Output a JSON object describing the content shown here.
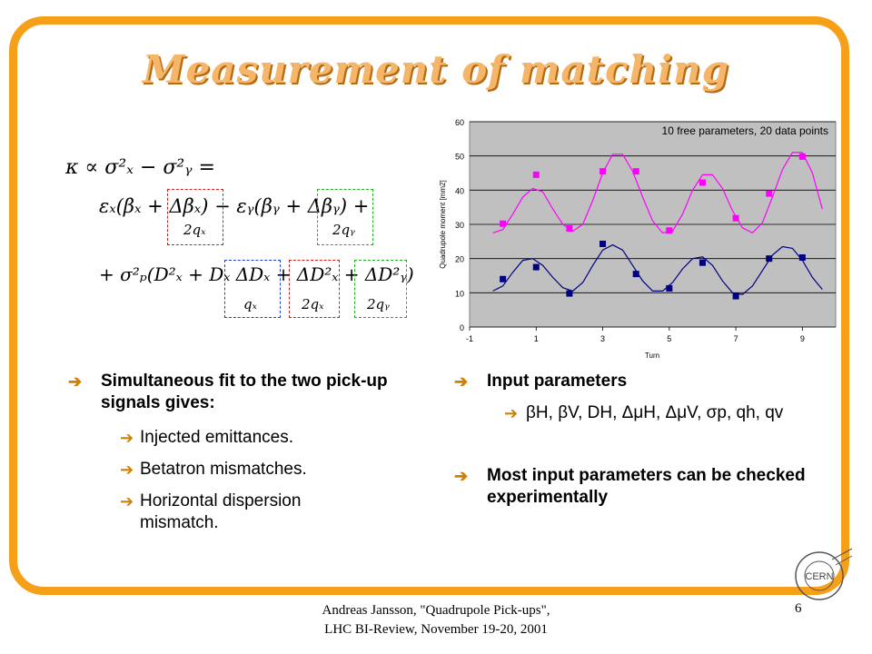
{
  "slide": {
    "title": "Measurement of matching",
    "footer_line1": "Andreas Jansson, \"Quadrupole Pick-ups\",",
    "footer_line2": "LHC BI-Review, November 19-20, 2001",
    "page_number": "6",
    "logo_text": "CERN"
  },
  "equation": {
    "line1": "κ ∝ σ²ₓ − σ²ᵧ =",
    "line2": "εₓ(βₓ + Δβₓ) − εᵧ(βᵧ + Δβᵧ) +",
    "line3": "+ σ²ₚ(D²ₓ + Dₓ ΔDₓ + ΔD²ₓ + ΔD²ᵧ)",
    "brace1": "2qₓ",
    "brace2": "2qᵧ",
    "brace3": "qₓ",
    "brace4": "2qₓ",
    "brace5": "2qᵧ"
  },
  "left_bullets": {
    "main": "Simultaneous fit to the two pick-up signals gives:",
    "sub": [
      "Injected emittances.",
      "Betatron mismatches.",
      "Horizontal dispersion mismatch."
    ]
  },
  "right_bullets": {
    "input_label": "Input parameters",
    "input_list": "βH, βV, DH, ΔμH, ΔμV, σp, qh, qv",
    "checked": "Most input parameters can be checked experimentally"
  },
  "colors": {
    "frame": "#f6a01a",
    "arrow": "#d08000",
    "plot_bg": "#c0c0c0",
    "magenta": "#ff00ff",
    "blue": "#000080"
  },
  "chart_data": {
    "type": "scatter",
    "annotation": "10 free parameters, 20 data points",
    "xlabel": "Turn",
    "ylabel": "Quadrupole moment [mm2]",
    "xlim": [
      -1,
      10
    ],
    "ylim": [
      0,
      60
    ],
    "xticks": [
      -1,
      1,
      3,
      5,
      7,
      9
    ],
    "yticks": [
      0,
      10,
      20,
      30,
      40,
      50,
      60
    ],
    "grid": "horizontal",
    "series": [
      {
        "color": "#ff00ff",
        "points": [
          [
            0,
            30.2
          ],
          [
            1,
            44.5
          ],
          [
            2,
            28.8
          ],
          [
            3,
            45.5
          ],
          [
            4,
            45.5
          ],
          [
            5,
            28.2
          ],
          [
            6,
            42.2
          ],
          [
            7,
            31.8
          ],
          [
            8,
            39.0
          ],
          [
            9,
            49.8
          ]
        ],
        "fit": [
          [
            -0.3,
            27.5
          ],
          [
            0,
            28.5
          ],
          [
            0.3,
            33
          ],
          [
            0.6,
            38
          ],
          [
            0.9,
            40.5
          ],
          [
            1.2,
            39.5
          ],
          [
            1.5,
            34.5
          ],
          [
            1.8,
            30
          ],
          [
            2.1,
            28
          ],
          [
            2.4,
            30
          ],
          [
            2.7,
            37
          ],
          [
            3.0,
            45
          ],
          [
            3.3,
            50.5
          ],
          [
            3.6,
            50.5
          ],
          [
            3.9,
            45.5
          ],
          [
            4.2,
            38
          ],
          [
            4.5,
            31
          ],
          [
            4.8,
            27.5
          ],
          [
            5.1,
            28
          ],
          [
            5.4,
            33
          ],
          [
            5.7,
            40
          ],
          [
            6.0,
            44.5
          ],
          [
            6.3,
            44.5
          ],
          [
            6.6,
            40.5
          ],
          [
            6.9,
            34
          ],
          [
            7.2,
            29
          ],
          [
            7.5,
            27.5
          ],
          [
            7.8,
            30.5
          ],
          [
            8.1,
            38
          ],
          [
            8.4,
            46
          ],
          [
            8.7,
            51
          ],
          [
            9.0,
            51
          ],
          [
            9.3,
            45
          ],
          [
            9.6,
            34.5
          ]
        ]
      },
      {
        "color": "#000080",
        "points": [
          [
            0,
            14.0
          ],
          [
            1,
            17.5
          ],
          [
            2,
            9.8
          ],
          [
            3,
            24.3
          ],
          [
            4,
            15.5
          ],
          [
            5,
            11.3
          ],
          [
            6,
            18.8
          ],
          [
            7,
            9.0
          ],
          [
            8,
            20.0
          ],
          [
            9,
            20.3
          ]
        ],
        "fit": [
          [
            -0.3,
            10.5
          ],
          [
            0,
            12
          ],
          [
            0.3,
            16
          ],
          [
            0.6,
            19.5
          ],
          [
            0.9,
            20
          ],
          [
            1.2,
            18
          ],
          [
            1.5,
            14.5
          ],
          [
            1.8,
            11.5
          ],
          [
            2.1,
            10.5
          ],
          [
            2.4,
            13
          ],
          [
            2.7,
            18
          ],
          [
            3.0,
            22.5
          ],
          [
            3.3,
            24
          ],
          [
            3.6,
            22.5
          ],
          [
            3.9,
            18
          ],
          [
            4.2,
            13.5
          ],
          [
            4.5,
            10.5
          ],
          [
            4.8,
            10.5
          ],
          [
            5.1,
            13
          ],
          [
            5.4,
            17
          ],
          [
            5.7,
            20
          ],
          [
            6.0,
            20.5
          ],
          [
            6.3,
            18
          ],
          [
            6.6,
            13.5
          ],
          [
            6.9,
            10
          ],
          [
            7.2,
            9.5
          ],
          [
            7.5,
            12
          ],
          [
            7.8,
            16.5
          ],
          [
            8.1,
            21
          ],
          [
            8.4,
            23.5
          ],
          [
            8.7,
            23
          ],
          [
            9.0,
            19.5
          ],
          [
            9.3,
            14.5
          ],
          [
            9.6,
            11
          ]
        ]
      }
    ]
  }
}
